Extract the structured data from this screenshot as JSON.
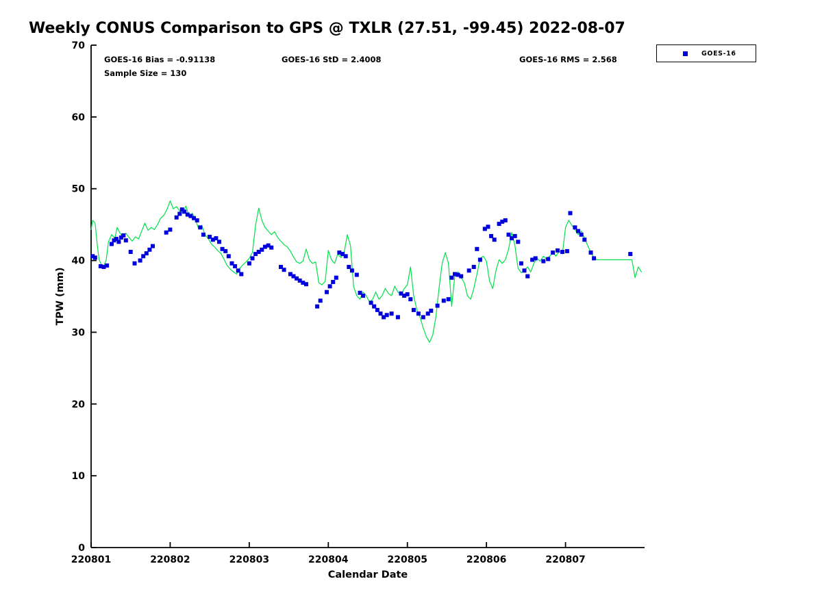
{
  "legend": {
    "label": "GOES-16"
  },
  "chart_data": {
    "type": "line",
    "title": "Weekly CONUS Comparison to GPS @ TXLR (27.51, -99.45) 2022-08-07",
    "xlabel": "Calendar Date",
    "ylabel": "TPW (mm)",
    "ylim": [
      0,
      70
    ],
    "xlim_days": [
      0,
      7
    ],
    "grid": false,
    "legend_position": "top-right-outside",
    "stats": {
      "bias": "GOES-16 Bias = -0.91138",
      "std": "GOES-16 StD = 2.4008",
      "rms": "GOES-16 RMS = 2.568",
      "sample": "Sample Size = 130"
    },
    "y_ticks": [
      0,
      10,
      20,
      30,
      40,
      50,
      60,
      70
    ],
    "x_ticks": {
      "values": [
        0,
        1,
        2,
        3,
        4,
        5,
        6
      ],
      "labels": [
        "220801",
        "220802",
        "220803",
        "220804",
        "220805",
        "220806",
        "220807"
      ]
    },
    "series": [
      {
        "name": "GPS",
        "type": "line",
        "color": "#00e048",
        "points": [
          [
            0.0,
            44.3
          ],
          [
            0.02,
            45.6
          ],
          [
            0.05,
            45.2
          ],
          [
            0.08,
            42.0
          ],
          [
            0.1,
            40.2
          ],
          [
            0.13,
            39.4
          ],
          [
            0.16,
            39.3
          ],
          [
            0.19,
            40.0
          ],
          [
            0.22,
            42.6
          ],
          [
            0.26,
            43.6
          ],
          [
            0.3,
            43.1
          ],
          [
            0.33,
            44.6
          ],
          [
            0.36,
            43.9
          ],
          [
            0.4,
            43.3
          ],
          [
            0.44,
            43.8
          ],
          [
            0.48,
            43.2
          ],
          [
            0.52,
            42.7
          ],
          [
            0.56,
            43.3
          ],
          [
            0.6,
            43.0
          ],
          [
            0.64,
            44.1
          ],
          [
            0.68,
            45.2
          ],
          [
            0.72,
            44.2
          ],
          [
            0.76,
            44.6
          ],
          [
            0.8,
            44.3
          ],
          [
            0.84,
            45.0
          ],
          [
            0.88,
            45.9
          ],
          [
            0.92,
            46.3
          ],
          [
            0.96,
            47.1
          ],
          [
            1.0,
            48.3
          ],
          [
            1.04,
            47.2
          ],
          [
            1.08,
            47.5
          ],
          [
            1.12,
            46.9
          ],
          [
            1.16,
            46.6
          ],
          [
            1.2,
            47.6
          ],
          [
            1.24,
            46.1
          ],
          [
            1.28,
            46.6
          ],
          [
            1.32,
            45.7
          ],
          [
            1.36,
            44.4
          ],
          [
            1.4,
            44.9
          ],
          [
            1.44,
            43.6
          ],
          [
            1.48,
            43.1
          ],
          [
            1.52,
            42.3
          ],
          [
            1.56,
            41.9
          ],
          [
            1.6,
            41.4
          ],
          [
            1.64,
            41.0
          ],
          [
            1.68,
            40.2
          ],
          [
            1.72,
            39.3
          ],
          [
            1.76,
            38.8
          ],
          [
            1.8,
            38.4
          ],
          [
            1.84,
            38.1
          ],
          [
            1.88,
            38.9
          ],
          [
            1.92,
            39.4
          ],
          [
            1.96,
            39.8
          ],
          [
            2.0,
            40.3
          ],
          [
            2.04,
            41.1
          ],
          [
            2.08,
            44.9
          ],
          [
            2.12,
            47.3
          ],
          [
            2.16,
            45.6
          ],
          [
            2.2,
            44.6
          ],
          [
            2.24,
            44.1
          ],
          [
            2.28,
            43.6
          ],
          [
            2.32,
            44.0
          ],
          [
            2.36,
            43.2
          ],
          [
            2.4,
            42.7
          ],
          [
            2.44,
            42.2
          ],
          [
            2.48,
            41.9
          ],
          [
            2.52,
            41.3
          ],
          [
            2.56,
            40.5
          ],
          [
            2.6,
            39.8
          ],
          [
            2.64,
            39.6
          ],
          [
            2.68,
            39.9
          ],
          [
            2.72,
            41.6
          ],
          [
            2.76,
            40.1
          ],
          [
            2.8,
            39.6
          ],
          [
            2.84,
            39.8
          ],
          [
            2.88,
            36.9
          ],
          [
            2.92,
            36.6
          ],
          [
            2.96,
            37.1
          ],
          [
            3.0,
            41.4
          ],
          [
            3.04,
            40.1
          ],
          [
            3.08,
            39.6
          ],
          [
            3.12,
            40.9
          ],
          [
            3.16,
            40.4
          ],
          [
            3.2,
            41.1
          ],
          [
            3.24,
            43.6
          ],
          [
            3.28,
            42.1
          ],
          [
            3.32,
            36.4
          ],
          [
            3.36,
            35.1
          ],
          [
            3.4,
            34.6
          ],
          [
            3.44,
            35.6
          ],
          [
            3.48,
            35.1
          ],
          [
            3.52,
            34.2
          ],
          [
            3.56,
            34.6
          ],
          [
            3.6,
            35.6
          ],
          [
            3.64,
            34.6
          ],
          [
            3.68,
            35.1
          ],
          [
            3.72,
            36.1
          ],
          [
            3.76,
            35.4
          ],
          [
            3.8,
            35.1
          ],
          [
            3.84,
            36.4
          ],
          [
            3.88,
            35.6
          ],
          [
            3.92,
            35.2
          ],
          [
            3.96,
            36.1
          ],
          [
            4.0,
            36.6
          ],
          [
            4.04,
            39.1
          ],
          [
            4.08,
            35.1
          ],
          [
            4.12,
            33.1
          ],
          [
            4.16,
            32.1
          ],
          [
            4.2,
            30.6
          ],
          [
            4.24,
            29.4
          ],
          [
            4.28,
            28.6
          ],
          [
            4.32,
            29.6
          ],
          [
            4.36,
            32.1
          ],
          [
            4.4,
            36.1
          ],
          [
            4.44,
            39.6
          ],
          [
            4.48,
            41.1
          ],
          [
            4.52,
            39.6
          ],
          [
            4.56,
            33.6
          ],
          [
            4.6,
            37.9
          ],
          [
            4.64,
            38.4
          ],
          [
            4.68,
            37.6
          ],
          [
            4.72,
            36.9
          ],
          [
            4.76,
            35.1
          ],
          [
            4.8,
            34.6
          ],
          [
            4.84,
            36.1
          ],
          [
            4.88,
            38.1
          ],
          [
            4.92,
            40.3
          ],
          [
            4.96,
            40.6
          ],
          [
            5.0,
            39.9
          ],
          [
            5.04,
            37.1
          ],
          [
            5.08,
            36.1
          ],
          [
            5.12,
            38.6
          ],
          [
            5.16,
            40.1
          ],
          [
            5.2,
            39.6
          ],
          [
            5.24,
            40.1
          ],
          [
            5.28,
            41.6
          ],
          [
            5.32,
            43.9
          ],
          [
            5.36,
            42.1
          ],
          [
            5.4,
            38.9
          ],
          [
            5.44,
            38.3
          ],
          [
            5.48,
            38.6
          ],
          [
            5.52,
            39.1
          ],
          [
            5.56,
            38.4
          ],
          [
            5.6,
            39.6
          ],
          [
            5.64,
            40.3
          ],
          [
            5.68,
            39.9
          ],
          [
            5.72,
            40.6
          ],
          [
            5.76,
            40.2
          ],
          [
            5.8,
            40.6
          ],
          [
            5.84,
            41.1
          ],
          [
            5.88,
            40.6
          ],
          [
            5.92,
            41.3
          ],
          [
            5.96,
            40.9
          ],
          [
            6.0,
            44.6
          ],
          [
            6.04,
            45.6
          ],
          [
            6.08,
            44.9
          ],
          [
            6.12,
            44.3
          ],
          [
            6.16,
            43.6
          ],
          [
            6.2,
            44.1
          ],
          [
            6.24,
            43.1
          ],
          [
            6.28,
            42.1
          ],
          [
            6.32,
            41.1
          ],
          [
            6.36,
            40.4
          ],
          [
            6.4,
            40.1
          ],
          [
            6.84,
            40.1
          ],
          [
            6.88,
            37.6
          ],
          [
            6.92,
            39.1
          ],
          [
            6.96,
            38.4
          ]
        ]
      },
      {
        "name": "GOES-16",
        "type": "scatter",
        "marker": "square",
        "color": "#0000dd",
        "points": [
          [
            0.02,
            40.6
          ],
          [
            0.05,
            40.4
          ],
          [
            0.12,
            39.2
          ],
          [
            0.16,
            39.1
          ],
          [
            0.2,
            39.3
          ],
          [
            0.26,
            42.3
          ],
          [
            0.29,
            42.8
          ],
          [
            0.32,
            43.0
          ],
          [
            0.35,
            42.6
          ],
          [
            0.38,
            43.2
          ],
          [
            0.41,
            43.5
          ],
          [
            0.44,
            42.8
          ],
          [
            0.5,
            41.2
          ],
          [
            0.55,
            39.6
          ],
          [
            0.62,
            40.0
          ],
          [
            0.66,
            40.6
          ],
          [
            0.7,
            41.0
          ],
          [
            0.74,
            41.5
          ],
          [
            0.78,
            42.0
          ],
          [
            0.95,
            43.9
          ],
          [
            1.0,
            44.3
          ],
          [
            1.08,
            46.0
          ],
          [
            1.12,
            46.5
          ],
          [
            1.15,
            47.1
          ],
          [
            1.18,
            46.8
          ],
          [
            1.22,
            46.4
          ],
          [
            1.26,
            46.2
          ],
          [
            1.3,
            45.9
          ],
          [
            1.34,
            45.6
          ],
          [
            1.38,
            44.6
          ],
          [
            1.42,
            43.6
          ],
          [
            1.5,
            43.3
          ],
          [
            1.54,
            42.9
          ],
          [
            1.58,
            43.1
          ],
          [
            1.62,
            42.6
          ],
          [
            1.66,
            41.6
          ],
          [
            1.7,
            41.3
          ],
          [
            1.74,
            40.6
          ],
          [
            1.78,
            39.6
          ],
          [
            1.82,
            39.2
          ],
          [
            1.86,
            38.6
          ],
          [
            1.9,
            38.1
          ],
          [
            2.0,
            39.6
          ],
          [
            2.04,
            40.3
          ],
          [
            2.08,
            40.9
          ],
          [
            2.12,
            41.2
          ],
          [
            2.16,
            41.5
          ],
          [
            2.2,
            41.9
          ],
          [
            2.24,
            42.1
          ],
          [
            2.28,
            41.8
          ],
          [
            2.4,
            39.1
          ],
          [
            2.44,
            38.7
          ],
          [
            2.52,
            38.1
          ],
          [
            2.56,
            37.8
          ],
          [
            2.6,
            37.5
          ],
          [
            2.64,
            37.2
          ],
          [
            2.68,
            36.9
          ],
          [
            2.72,
            36.7
          ],
          [
            2.86,
            33.6
          ],
          [
            2.9,
            34.4
          ],
          [
            2.98,
            35.6
          ],
          [
            3.02,
            36.4
          ],
          [
            3.06,
            37.0
          ],
          [
            3.1,
            37.6
          ],
          [
            3.14,
            41.1
          ],
          [
            3.18,
            40.9
          ],
          [
            3.22,
            40.6
          ],
          [
            3.26,
            39.1
          ],
          [
            3.3,
            38.6
          ],
          [
            3.36,
            38.0
          ],
          [
            3.4,
            35.5
          ],
          [
            3.44,
            35.1
          ],
          [
            3.54,
            34.1
          ],
          [
            3.58,
            33.6
          ],
          [
            3.62,
            33.1
          ],
          [
            3.66,
            32.6
          ],
          [
            3.7,
            32.1
          ],
          [
            3.74,
            32.4
          ],
          [
            3.8,
            32.6
          ],
          [
            3.88,
            32.1
          ],
          [
            3.92,
            35.4
          ],
          [
            3.96,
            35.1
          ],
          [
            4.0,
            35.3
          ],
          [
            4.04,
            34.6
          ],
          [
            4.08,
            33.1
          ],
          [
            4.14,
            32.6
          ],
          [
            4.2,
            32.1
          ],
          [
            4.26,
            32.6
          ],
          [
            4.3,
            33.0
          ],
          [
            4.38,
            33.7
          ],
          [
            4.46,
            34.4
          ],
          [
            4.52,
            34.6
          ],
          [
            4.56,
            37.6
          ],
          [
            4.6,
            38.1
          ],
          [
            4.64,
            38.0
          ],
          [
            4.68,
            37.8
          ],
          [
            4.78,
            38.6
          ],
          [
            4.84,
            39.1
          ],
          [
            4.88,
            41.6
          ],
          [
            4.92,
            40.1
          ],
          [
            4.98,
            44.4
          ],
          [
            5.02,
            44.7
          ],
          [
            5.06,
            43.4
          ],
          [
            5.1,
            42.9
          ],
          [
            5.16,
            45.1
          ],
          [
            5.2,
            45.4
          ],
          [
            5.24,
            45.6
          ],
          [
            5.28,
            43.6
          ],
          [
            5.32,
            43.1
          ],
          [
            5.36,
            43.4
          ],
          [
            5.4,
            42.6
          ],
          [
            5.44,
            39.6
          ],
          [
            5.48,
            38.6
          ],
          [
            5.52,
            37.8
          ],
          [
            5.58,
            40.1
          ],
          [
            5.62,
            40.3
          ],
          [
            5.72,
            39.9
          ],
          [
            5.78,
            40.2
          ],
          [
            5.84,
            41.1
          ],
          [
            5.9,
            41.4
          ],
          [
            5.96,
            41.2
          ],
          [
            6.02,
            41.3
          ],
          [
            6.06,
            46.6
          ],
          [
            6.12,
            44.6
          ],
          [
            6.16,
            44.1
          ],
          [
            6.2,
            43.6
          ],
          [
            6.24,
            42.9
          ],
          [
            6.32,
            41.1
          ],
          [
            6.36,
            40.3
          ],
          [
            6.82,
            40.9
          ]
        ]
      }
    ]
  }
}
